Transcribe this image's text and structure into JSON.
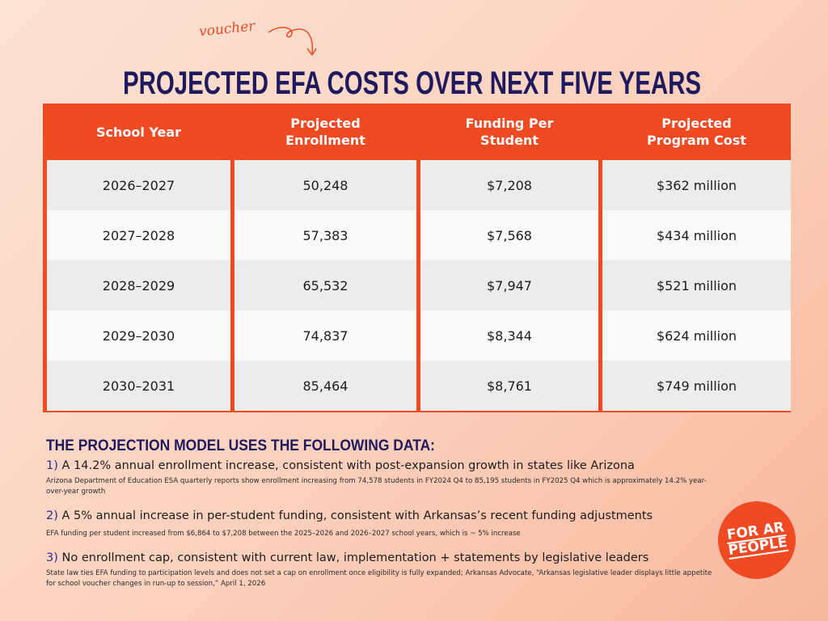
{
  "annotation": "voucher",
  "title": "PROJECTED EFA COSTS OVER NEXT FIVE YEARS",
  "table": {
    "headers": [
      "School Year",
      "Projected Enrollment",
      "Funding Per Student",
      "Projected Program Cost"
    ],
    "rows": [
      [
        "2026–2027",
        "50,248",
        "$7,208",
        "$362 million"
      ],
      [
        "2027–2028",
        "57,383",
        "$7,568",
        "$434 million"
      ],
      [
        "2028–2029",
        "65,532",
        "$7,947",
        "$521 million"
      ],
      [
        "2029–2030",
        "74,837",
        "$8,344",
        "$624 million"
      ],
      [
        "2030–2031",
        "85,464",
        "$8,761",
        "$749 million"
      ]
    ]
  },
  "notes": {
    "heading": "THE PROJECTION MODEL USES THE FOLLOWING DATA:",
    "items": [
      {
        "headline": "1) A 14.2% annual enrollment increase, consistent with post-expansion growth in states like Arizona",
        "detail": "Arizona Department of Education ESA quarterly reports show enrollment increasing from 74,578 students in FY2024 Q4 to 85,195 students in FY2025 Q4 which is approximately 14.2% year-over-year growth"
      },
      {
        "headline": "2) A 5% annual increase in per-student funding, consistent with Arkansas’s recent funding adjustments",
        "detail": "EFA funding per student increased from $6,864 to $7,208 between the 2025–2026 and 2026–2027 school years, which is ~ 5% increase"
      },
      {
        "headline": "3) No enrollment cap, consistent with current law, implementation + statements by legislative leaders",
        "detail": "State law ties EFA funding to participation levels and does not set a cap on enrollment once eligibility is fully expanded; Arkansas Advocate, “Arkansas legislative leader displays little appetite for school voucher changes in run-up to session,” April 1, 2026"
      }
    ]
  },
  "logo": [
    "FOR AR",
    "PEOPLE"
  ]
}
